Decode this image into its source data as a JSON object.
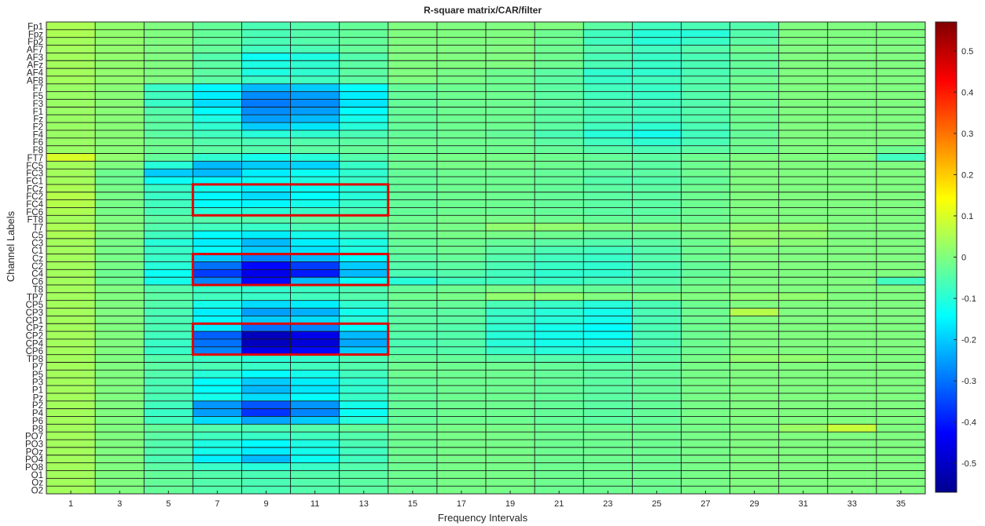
{
  "chart_data": {
    "type": "heatmap",
    "title": "R-square matrix/CAR/filter",
    "xlabel": "Frequency Intervals",
    "ylabel": "Channel Labels",
    "x_tick_labels": [
      "1",
      "3",
      "5",
      "7",
      "9",
      "11",
      "13",
      "15",
      "17",
      "19",
      "21",
      "23",
      "25",
      "27",
      "29",
      "31",
      "33",
      "35"
    ],
    "y_labels": [
      "Fp1",
      "Fpz",
      "Fp2",
      "AF7",
      "AF3",
      "AFz",
      "AF4",
      "AF8",
      "F7",
      "F5",
      "F3",
      "F1",
      "Fz",
      "F2",
      "F4",
      "F6",
      "F8",
      "FT7",
      "FC5",
      "FC3",
      "FC1",
      "FCz",
      "FC2",
      "FC4",
      "FC6",
      "FT8",
      "T7",
      "C5",
      "C3",
      "C1",
      "Cz",
      "C2",
      "C4",
      "C6",
      "T8",
      "TP7",
      "CP5",
      "CP3",
      "CP1",
      "CPz",
      "CP2",
      "CP4",
      "CP6",
      "TP8",
      "P7",
      "P5",
      "P3",
      "P1",
      "Pz",
      "P2",
      "P4",
      "P6",
      "P8",
      "PO7",
      "PO3",
      "POz",
      "PO4",
      "PO8",
      "O1",
      "Oz",
      "O2"
    ],
    "colorbar": {
      "colormap": "jet",
      "clim": [
        -0.57,
        0.57
      ],
      "ticks": [
        -0.5,
        -0.4,
        -0.3,
        -0.2,
        -0.1,
        0,
        0.1,
        0.2,
        0.3,
        0.4,
        0.5
      ]
    },
    "grid": true,
    "values": [
      [
        0.05,
        0.02,
        0.0,
        -0.03,
        -0.06,
        -0.05,
        -0.03,
        0.0,
        0.0,
        0.0,
        0.0,
        -0.04,
        -0.07,
        -0.06,
        -0.05,
        0.0,
        0.0,
        0.0
      ],
      [
        0.05,
        0.02,
        0.0,
        -0.03,
        -0.06,
        -0.05,
        -0.03,
        0.0,
        0.0,
        0.0,
        -0.02,
        -0.07,
        -0.1,
        -0.1,
        -0.05,
        0.0,
        0.0,
        0.0
      ],
      [
        0.04,
        0.02,
        0.0,
        -0.03,
        -0.06,
        -0.05,
        -0.03,
        0.0,
        0.0,
        0.0,
        -0.02,
        -0.07,
        -0.1,
        -0.08,
        -0.04,
        0.0,
        0.0,
        0.0
      ],
      [
        0.04,
        0.02,
        0.0,
        -0.03,
        -0.07,
        -0.06,
        -0.03,
        0.0,
        0.0,
        0.0,
        -0.02,
        -0.05,
        -0.07,
        -0.05,
        -0.02,
        0.0,
        0.0,
        0.0
      ],
      [
        0.04,
        0.02,
        0.0,
        -0.05,
        -0.13,
        -0.11,
        -0.05,
        0.0,
        0.0,
        0.0,
        -0.02,
        -0.06,
        -0.08,
        -0.06,
        -0.03,
        0.0,
        0.0,
        0.0
      ],
      [
        0.04,
        0.02,
        0.0,
        -0.04,
        -0.11,
        -0.09,
        -0.04,
        0.0,
        0.0,
        0.0,
        -0.02,
        -0.06,
        -0.08,
        -0.06,
        -0.03,
        0.0,
        0.0,
        0.0
      ],
      [
        0.04,
        0.02,
        0.0,
        -0.04,
        -0.11,
        -0.09,
        -0.04,
        0.0,
        -0.01,
        -0.02,
        -0.04,
        -0.09,
        -0.09,
        -0.06,
        -0.03,
        0.0,
        0.0,
        0.0
      ],
      [
        0.04,
        0.02,
        0.0,
        -0.04,
        -0.08,
        -0.07,
        -0.04,
        0.0,
        -0.01,
        -0.02,
        -0.04,
        -0.08,
        -0.07,
        -0.05,
        -0.02,
        0.0,
        0.0,
        0.0
      ],
      [
        0.03,
        0.01,
        -0.08,
        -0.15,
        -0.22,
        -0.2,
        -0.14,
        -0.03,
        -0.02,
        -0.02,
        -0.04,
        -0.07,
        -0.08,
        -0.05,
        -0.02,
        0.0,
        0.0,
        0.0
      ],
      [
        0.03,
        0.01,
        -0.07,
        -0.16,
        -0.27,
        -0.25,
        -0.16,
        -0.03,
        -0.02,
        -0.02,
        -0.04,
        -0.07,
        -0.08,
        -0.05,
        -0.02,
        0.0,
        0.0,
        0.0
      ],
      [
        0.03,
        0.01,
        -0.08,
        -0.18,
        -0.29,
        -0.27,
        -0.17,
        -0.03,
        -0.02,
        -0.02,
        -0.04,
        -0.06,
        -0.07,
        -0.05,
        -0.02,
        0.0,
        0.0,
        0.0
      ],
      [
        0.03,
        0.01,
        -0.05,
        -0.14,
        -0.27,
        -0.25,
        -0.14,
        -0.03,
        -0.02,
        -0.02,
        -0.04,
        -0.06,
        -0.07,
        -0.05,
        -0.02,
        0.0,
        0.0,
        0.0
      ],
      [
        0.03,
        0.01,
        -0.04,
        -0.11,
        -0.25,
        -0.22,
        -0.12,
        -0.03,
        -0.02,
        -0.02,
        -0.04,
        -0.06,
        -0.07,
        -0.05,
        -0.02,
        0.0,
        0.0,
        0.0
      ],
      [
        0.03,
        0.01,
        -0.04,
        -0.09,
        -0.2,
        -0.17,
        -0.1,
        -0.03,
        -0.02,
        -0.02,
        -0.04,
        -0.07,
        -0.09,
        -0.06,
        -0.02,
        0.0,
        0.0,
        0.0
      ],
      [
        0.03,
        0.01,
        -0.04,
        -0.07,
        -0.1,
        -0.09,
        -0.06,
        -0.03,
        -0.02,
        -0.03,
        -0.06,
        -0.1,
        -0.12,
        -0.07,
        -0.03,
        0.0,
        0.0,
        0.0
      ],
      [
        0.03,
        0.01,
        -0.02,
        -0.05,
        -0.06,
        -0.05,
        -0.04,
        -0.02,
        -0.02,
        -0.02,
        -0.04,
        -0.07,
        -0.09,
        -0.06,
        -0.02,
        0.0,
        0.0,
        0.0
      ],
      [
        0.03,
        0.01,
        -0.02,
        -0.04,
        -0.05,
        -0.04,
        -0.03,
        -0.02,
        -0.02,
        -0.02,
        -0.03,
        -0.05,
        -0.06,
        -0.04,
        -0.02,
        0.0,
        0.0,
        -0.02
      ],
      [
        0.1,
        0.02,
        -0.03,
        -0.09,
        -0.12,
        -0.1,
        -0.05,
        -0.02,
        -0.01,
        -0.01,
        -0.02,
        -0.03,
        -0.04,
        -0.02,
        0.0,
        0.0,
        0.0,
        -0.07
      ],
      [
        0.04,
        0.0,
        -0.1,
        -0.22,
        -0.2,
        -0.19,
        -0.08,
        -0.02,
        -0.01,
        -0.01,
        -0.02,
        -0.03,
        -0.04,
        -0.02,
        0.0,
        0.0,
        0.0,
        0.0
      ],
      [
        0.04,
        -0.02,
        -0.2,
        -0.22,
        -0.16,
        -0.13,
        -0.09,
        -0.03,
        -0.02,
        -0.02,
        -0.03,
        -0.04,
        -0.04,
        -0.02,
        0.0,
        0.0,
        0.0,
        0.0
      ],
      [
        0.04,
        -0.02,
        -0.13,
        -0.15,
        -0.13,
        -0.11,
        -0.08,
        -0.03,
        -0.02,
        -0.02,
        -0.03,
        -0.05,
        -0.05,
        -0.03,
        0.0,
        0.0,
        0.0,
        0.0
      ],
      [
        0.05,
        -0.01,
        -0.08,
        -0.12,
        -0.16,
        -0.13,
        -0.1,
        -0.03,
        -0.02,
        -0.02,
        -0.03,
        -0.04,
        -0.04,
        -0.02,
        0.0,
        0.0,
        0.0,
        0.0
      ],
      [
        0.06,
        -0.01,
        -0.08,
        -0.15,
        -0.18,
        -0.14,
        -0.1,
        -0.03,
        -0.02,
        -0.02,
        -0.03,
        -0.04,
        -0.04,
        -0.02,
        0.0,
        0.0,
        0.0,
        0.0
      ],
      [
        0.06,
        -0.01,
        -0.07,
        -0.14,
        -0.15,
        -0.12,
        -0.08,
        -0.03,
        -0.02,
        -0.02,
        -0.03,
        -0.04,
        -0.04,
        -0.02,
        0.0,
        0.0,
        0.0,
        0.0
      ],
      [
        0.05,
        -0.01,
        -0.06,
        -0.1,
        -0.1,
        -0.08,
        -0.06,
        -0.03,
        -0.02,
        -0.02,
        -0.03,
        -0.04,
        -0.04,
        -0.02,
        0.0,
        0.0,
        0.0,
        0.0
      ],
      [
        0.04,
        0.0,
        -0.04,
        -0.05,
        -0.05,
        -0.04,
        -0.03,
        -0.02,
        -0.01,
        -0.01,
        -0.02,
        -0.03,
        -0.03,
        -0.02,
        0.0,
        0.0,
        0.0,
        0.0
      ],
      [
        0.05,
        0.0,
        -0.05,
        -0.07,
        -0.08,
        -0.06,
        -0.04,
        -0.02,
        -0.01,
        0.02,
        0.02,
        0.0,
        0.0,
        0.0,
        0.02,
        0.02,
        0.0,
        0.0
      ],
      [
        0.05,
        0.0,
        -0.07,
        -0.14,
        -0.16,
        -0.12,
        -0.08,
        -0.02,
        -0.01,
        -0.01,
        -0.02,
        -0.03,
        -0.03,
        -0.01,
        0.02,
        0.02,
        0.0,
        0.0
      ],
      [
        0.04,
        -0.01,
        -0.1,
        -0.16,
        -0.22,
        -0.16,
        -0.11,
        -0.03,
        -0.02,
        -0.03,
        -0.04,
        -0.05,
        -0.04,
        -0.02,
        0.02,
        0.01,
        0.0,
        0.0
      ],
      [
        0.04,
        -0.01,
        -0.08,
        -0.14,
        -0.2,
        -0.17,
        -0.11,
        -0.03,
        -0.02,
        -0.04,
        -0.06,
        -0.07,
        -0.05,
        -0.02,
        0.0,
        0.0,
        0.0,
        0.0
      ],
      [
        0.04,
        -0.01,
        -0.08,
        -0.2,
        -0.28,
        -0.22,
        -0.14,
        -0.04,
        -0.03,
        -0.05,
        -0.07,
        -0.08,
        -0.05,
        -0.02,
        0.0,
        0.0,
        0.0,
        0.0
      ],
      [
        0.04,
        -0.01,
        -0.1,
        -0.3,
        -0.42,
        -0.36,
        -0.2,
        -0.05,
        -0.04,
        -0.06,
        -0.08,
        -0.09,
        -0.06,
        -0.03,
        0.0,
        0.0,
        0.0,
        0.0
      ],
      [
        0.04,
        -0.02,
        -0.13,
        -0.36,
        -0.45,
        -0.4,
        -0.22,
        -0.06,
        -0.05,
        -0.07,
        -0.09,
        -0.09,
        -0.06,
        -0.03,
        0.0,
        0.0,
        0.0,
        0.0
      ],
      [
        0.04,
        -0.02,
        -0.12,
        -0.28,
        -0.42,
        -0.22,
        -0.13,
        -0.1,
        -0.07,
        -0.07,
        -0.08,
        -0.07,
        -0.05,
        -0.02,
        0.0,
        0.0,
        0.0,
        -0.07
      ],
      [
        0.04,
        0.0,
        -0.05,
        -0.08,
        -0.09,
        -0.08,
        -0.06,
        -0.03,
        -0.02,
        -0.01,
        -0.02,
        -0.03,
        -0.03,
        -0.01,
        0.0,
        0.0,
        0.0,
        0.0
      ],
      [
        0.04,
        0.0,
        -0.04,
        -0.07,
        -0.08,
        -0.07,
        -0.05,
        -0.02,
        -0.01,
        0.02,
        0.02,
        0.0,
        0.0,
        0.0,
        0.02,
        0.02,
        0.0,
        0.0
      ],
      [
        0.04,
        0.0,
        -0.05,
        -0.12,
        -0.18,
        -0.16,
        -0.09,
        -0.03,
        -0.03,
        -0.06,
        -0.08,
        -0.1,
        -0.06,
        -0.02,
        0.0,
        0.0,
        0.0,
        0.0
      ],
      [
        0.04,
        0.0,
        -0.06,
        -0.16,
        -0.25,
        -0.23,
        -0.12,
        -0.04,
        -0.04,
        -0.08,
        -0.1,
        -0.12,
        -0.06,
        -0.02,
        0.06,
        0.0,
        0.0,
        0.0
      ],
      [
        0.04,
        0.0,
        -0.06,
        -0.14,
        -0.2,
        -0.18,
        -0.1,
        -0.04,
        -0.04,
        -0.08,
        -0.1,
        -0.12,
        -0.06,
        -0.02,
        0.0,
        0.0,
        0.0,
        0.0
      ],
      [
        0.04,
        0.0,
        -0.06,
        -0.16,
        -0.3,
        -0.28,
        -0.14,
        -0.04,
        -0.05,
        -0.09,
        -0.12,
        -0.14,
        -0.06,
        -0.02,
        0.0,
        0.0,
        0.0,
        0.0
      ],
      [
        0.04,
        0.0,
        -0.07,
        -0.32,
        -0.5,
        -0.45,
        -0.22,
        -0.05,
        -0.05,
        -0.1,
        -0.12,
        -0.13,
        -0.06,
        -0.02,
        0.0,
        0.0,
        0.0,
        0.0
      ],
      [
        0.04,
        0.0,
        -0.08,
        -0.3,
        -0.5,
        -0.47,
        -0.24,
        -0.06,
        -0.05,
        -0.1,
        -0.12,
        -0.12,
        -0.06,
        -0.02,
        0.0,
        0.0,
        0.0,
        0.0
      ],
      [
        0.04,
        0.0,
        -0.08,
        -0.28,
        -0.45,
        -0.42,
        -0.2,
        -0.05,
        -0.05,
        -0.08,
        -0.1,
        -0.1,
        -0.05,
        -0.02,
        0.0,
        0.0,
        0.0,
        0.0
      ],
      [
        0.04,
        0.0,
        -0.05,
        -0.08,
        -0.1,
        -0.09,
        -0.06,
        -0.03,
        -0.03,
        -0.04,
        -0.05,
        -0.06,
        -0.04,
        -0.01,
        0.02,
        0.02,
        0.0,
        0.0
      ],
      [
        0.04,
        0.0,
        -0.04,
        -0.06,
        -0.08,
        -0.07,
        -0.05,
        -0.02,
        -0.02,
        -0.02,
        -0.03,
        -0.04,
        -0.03,
        -0.01,
        0.0,
        0.0,
        0.0,
        0.0
      ],
      [
        0.04,
        0.0,
        -0.05,
        -0.1,
        -0.14,
        -0.12,
        -0.07,
        -0.02,
        -0.02,
        -0.02,
        -0.03,
        -0.04,
        -0.03,
        -0.01,
        0.0,
        0.0,
        0.0,
        0.0
      ],
      [
        0.04,
        0.0,
        -0.06,
        -0.14,
        -0.2,
        -0.16,
        -0.09,
        -0.03,
        -0.02,
        -0.02,
        -0.03,
        -0.04,
        -0.03,
        -0.01,
        0.0,
        0.0,
        0.0,
        0.0
      ],
      [
        0.04,
        0.0,
        -0.06,
        -0.14,
        -0.22,
        -0.17,
        -0.09,
        -0.03,
        -0.02,
        -0.02,
        -0.03,
        -0.04,
        -0.03,
        -0.01,
        0.0,
        0.0,
        0.0,
        0.0
      ],
      [
        0.04,
        0.0,
        -0.06,
        -0.12,
        -0.18,
        -0.14,
        -0.08,
        -0.03,
        -0.02,
        -0.02,
        -0.03,
        -0.04,
        -0.03,
        -0.01,
        0.0,
        0.0,
        0.0,
        0.0
      ],
      [
        0.04,
        0.0,
        -0.07,
        -0.26,
        -0.33,
        -0.26,
        -0.12,
        -0.03,
        -0.02,
        -0.02,
        -0.03,
        -0.04,
        -0.03,
        -0.01,
        0.0,
        0.0,
        0.0,
        0.0
      ],
      [
        0.04,
        0.0,
        -0.08,
        -0.25,
        -0.37,
        -0.28,
        -0.13,
        -0.03,
        -0.02,
        -0.02,
        -0.03,
        -0.04,
        -0.03,
        -0.01,
        0.0,
        0.0,
        0.0,
        0.0
      ],
      [
        0.04,
        0.0,
        -0.07,
        -0.18,
        -0.24,
        -0.2,
        -0.1,
        -0.03,
        -0.02,
        -0.02,
        -0.03,
        -0.04,
        -0.03,
        -0.01,
        0.0,
        0.0,
        0.0,
        0.0
      ],
      [
        0.04,
        0.0,
        -0.03,
        -0.05,
        -0.06,
        -0.05,
        -0.03,
        -0.02,
        -0.01,
        -0.01,
        -0.02,
        -0.02,
        -0.02,
        -0.01,
        0.0,
        0.03,
        0.08,
        0.0
      ],
      [
        0.04,
        0.0,
        -0.04,
        -0.07,
        -0.08,
        -0.07,
        -0.05,
        -0.02,
        -0.01,
        -0.01,
        -0.02,
        -0.02,
        -0.02,
        -0.01,
        0.0,
        0.0,
        0.0,
        0.0
      ],
      [
        0.04,
        0.0,
        -0.05,
        -0.11,
        -0.14,
        -0.11,
        -0.06,
        -0.02,
        -0.01,
        -0.01,
        -0.02,
        -0.02,
        -0.02,
        -0.01,
        0.0,
        0.0,
        0.0,
        0.0
      ],
      [
        0.04,
        0.0,
        -0.05,
        -0.12,
        -0.16,
        -0.12,
        -0.07,
        -0.02,
        -0.01,
        -0.01,
        -0.02,
        -0.02,
        -0.02,
        -0.01,
        0.0,
        0.0,
        0.0,
        0.0
      ],
      [
        0.04,
        0.0,
        -0.06,
        -0.16,
        -0.22,
        -0.13,
        -0.07,
        -0.02,
        -0.01,
        -0.01,
        -0.02,
        -0.02,
        -0.02,
        -0.01,
        0.0,
        0.0,
        0.0,
        0.0
      ],
      [
        0.04,
        0.0,
        -0.04,
        -0.08,
        -0.1,
        -0.08,
        -0.05,
        -0.02,
        -0.01,
        -0.01,
        -0.02,
        -0.02,
        -0.02,
        -0.01,
        0.0,
        0.0,
        0.0,
        0.0
      ],
      [
        0.04,
        0.0,
        -0.03,
        -0.05,
        -0.06,
        -0.05,
        -0.04,
        -0.02,
        -0.01,
        -0.01,
        -0.02,
        -0.02,
        -0.02,
        -0.01,
        0.0,
        0.0,
        0.0,
        0.0
      ],
      [
        0.04,
        0.0,
        -0.03,
        -0.05,
        -0.06,
        -0.05,
        -0.04,
        -0.02,
        -0.01,
        -0.01,
        -0.02,
        -0.02,
        -0.02,
        -0.01,
        0.0,
        0.0,
        0.0,
        0.0
      ],
      [
        0.04,
        0.0,
        -0.03,
        -0.05,
        -0.06,
        -0.05,
        -0.04,
        -0.02,
        -0.01,
        -0.01,
        -0.02,
        -0.02,
        -0.02,
        -0.01,
        0.0,
        0.0,
        0.0,
        0.0
      ]
    ],
    "highlight_boxes": [
      {
        "x_from": "7",
        "x_to": "13",
        "y_from": "FCz",
        "y_to": "FC6",
        "color": "#e00000"
      },
      {
        "x_from": "7",
        "x_to": "13",
        "y_from": "Cz",
        "y_to": "C6",
        "color": "#e00000"
      },
      {
        "x_from": "7",
        "x_to": "13",
        "y_from": "CPz",
        "y_to": "CP6",
        "color": "#e00000"
      }
    ]
  }
}
